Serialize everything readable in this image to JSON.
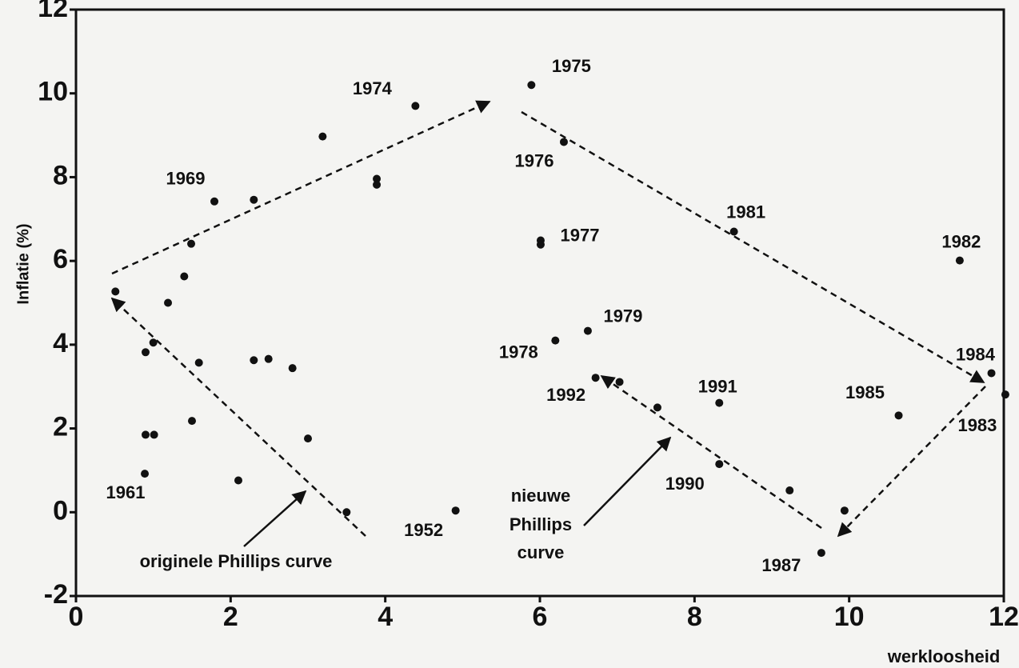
{
  "chart_data": {
    "type": "scatter",
    "x_label": "werkloosheid",
    "y_label": "Inflatie (%)",
    "xlim": [
      0,
      12
    ],
    "ylim": [
      -2,
      12
    ],
    "xticks": [
      0,
      2,
      4,
      6,
      8,
      10,
      12
    ],
    "yticks": [
      -2,
      0,
      2,
      4,
      6,
      8,
      10,
      12
    ],
    "color": "#111111",
    "x": [
      5.89,
      4.39,
      3.19,
      3.89,
      3.89,
      6.31,
      1.79,
      2.3,
      1.49,
      1.4,
      0.51,
      1.19,
      0.9,
      1.0,
      1.59,
      2.3,
      2.49,
      2.8,
      6.01,
      6.01,
      8.51,
      11.43,
      6.2,
      6.62,
      11.84,
      12.02,
      6.72,
      7.03,
      7.52,
      8.32,
      10.64,
      0.9,
      1.01,
      1.5,
      3.0,
      0.89,
      2.1,
      3.5,
      4.91,
      8.32,
      9.23,
      9.94,
      9.64
    ],
    "values": [
      10.2,
      9.7,
      8.97,
      7.96,
      7.82,
      8.84,
      7.42,
      7.46,
      6.41,
      5.63,
      5.27,
      5.0,
      3.82,
      4.05,
      3.57,
      3.63,
      3.66,
      3.44,
      6.49,
      6.39,
      6.7,
      6.01,
      4.1,
      4.33,
      3.32,
      2.81,
      3.21,
      3.11,
      2.5,
      2.61,
      2.31,
      1.85,
      1.85,
      2.18,
      1.76,
      0.92,
      0.76,
      0.0,
      0.04,
      1.15,
      0.52,
      0.04,
      -0.97
    ],
    "point_labels": [
      "1975",
      "1974",
      null,
      null,
      null,
      "1976",
      "1969",
      null,
      null,
      null,
      null,
      null,
      null,
      null,
      null,
      null,
      null,
      null,
      "1977",
      null,
      "1981",
      "1982",
      "1978",
      "1979",
      "1984",
      "1983",
      "1992",
      null,
      null,
      "1991",
      "1985",
      null,
      null,
      null,
      null,
      "1961",
      null,
      null,
      "1952",
      "1990",
      null,
      null,
      "1987"
    ],
    "annotations": [
      [
        "originele Phillips curve"
      ],
      [
        "nieuwe",
        "Phillips",
        "curve"
      ]
    ]
  }
}
